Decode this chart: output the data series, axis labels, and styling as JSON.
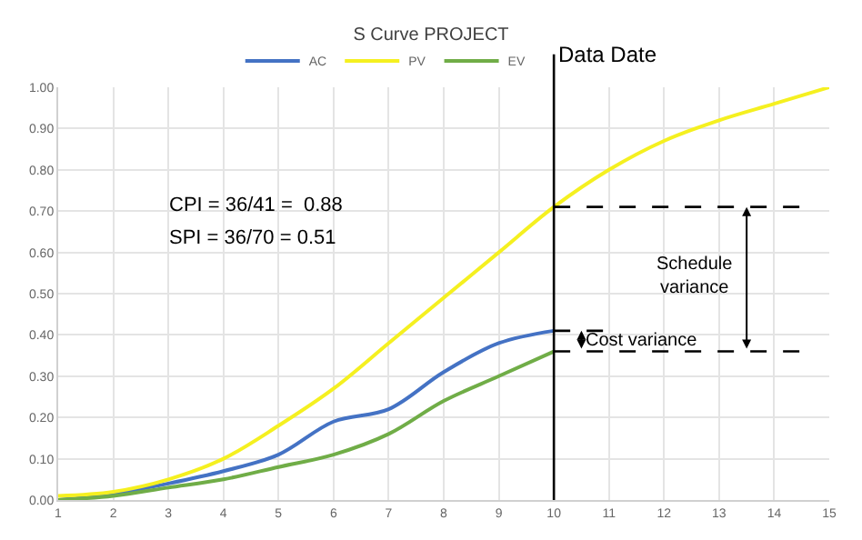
{
  "chart_data": {
    "type": "line",
    "title": "S Curve PROJECT",
    "x": [
      1,
      2,
      3,
      4,
      5,
      6,
      7,
      8,
      9,
      10,
      11,
      12,
      13,
      14,
      15
    ],
    "series": [
      {
        "name": "AC",
        "color": "#4472c4",
        "x": [
          1,
          2,
          3,
          4,
          5,
          6,
          7,
          8,
          9,
          10
        ],
        "values": [
          0.0,
          0.015,
          0.04,
          0.07,
          0.11,
          0.19,
          0.22,
          0.31,
          0.38,
          0.41
        ]
      },
      {
        "name": "PV",
        "color": "#f5f020",
        "values": [
          0.01,
          0.02,
          0.05,
          0.1,
          0.18,
          0.27,
          0.38,
          0.49,
          0.6,
          0.71,
          0.8,
          0.87,
          0.92,
          0.96,
          1.0
        ]
      },
      {
        "name": "EV",
        "color": "#70ad47",
        "x": [
          1,
          2,
          3,
          4,
          5,
          6,
          7,
          8,
          9,
          10
        ],
        "values": [
          0.0,
          0.01,
          0.03,
          0.05,
          0.08,
          0.11,
          0.16,
          0.24,
          0.3,
          0.36
        ]
      },
      {
        "color": "#000000",
        "line_style": "dashed",
        "x": [
          10,
          14.5
        ],
        "values": [
          0.71,
          0.71
        ]
      },
      {
        "color": "#000000",
        "line_style": "dashed",
        "x": [
          10,
          14.5
        ],
        "values": [
          0.36,
          0.36
        ]
      },
      {
        "color": "#000000",
        "line_style": "dashed",
        "x": [
          10,
          10.9
        ],
        "values": [
          0.41,
          0.41
        ]
      }
    ],
    "xlim": [
      1,
      15
    ],
    "xticks": [
      1,
      2,
      3,
      4,
      5,
      6,
      7,
      8,
      9,
      10,
      11,
      12,
      13,
      14,
      15
    ],
    "ylim": [
      0,
      1
    ],
    "yticks": [
      {
        "value": 0,
        "label": "0.00"
      },
      {
        "value": 0.1,
        "label": "0.10"
      },
      {
        "value": 0.2,
        "label": "0.20"
      },
      {
        "value": 0.3,
        "label": "0.30"
      },
      {
        "value": 0.4,
        "label": "0.40"
      },
      {
        "value": 0.5,
        "label": "0.50"
      },
      {
        "value": 0.6,
        "label": "0.60"
      },
      {
        "value": 0.7,
        "label": "0.70"
      },
      {
        "value": 0.8,
        "label": "0.80"
      },
      {
        "value": 0.9,
        "label": "0.90"
      },
      {
        "value": 1,
        "label": "1.00"
      }
    ],
    "ref_lines": [
      {
        "axis": "x",
        "value": 10,
        "label": "Data Date",
        "color": "#000000"
      }
    ],
    "annotations": [
      "CPI = 36/41 =  0.88",
      "SPI = 36/70 = 0.51",
      "Schedule variance",
      "Cost variance"
    ],
    "grid": true,
    "legend": "top",
    "marker": "none",
    "line_style": "solid"
  }
}
